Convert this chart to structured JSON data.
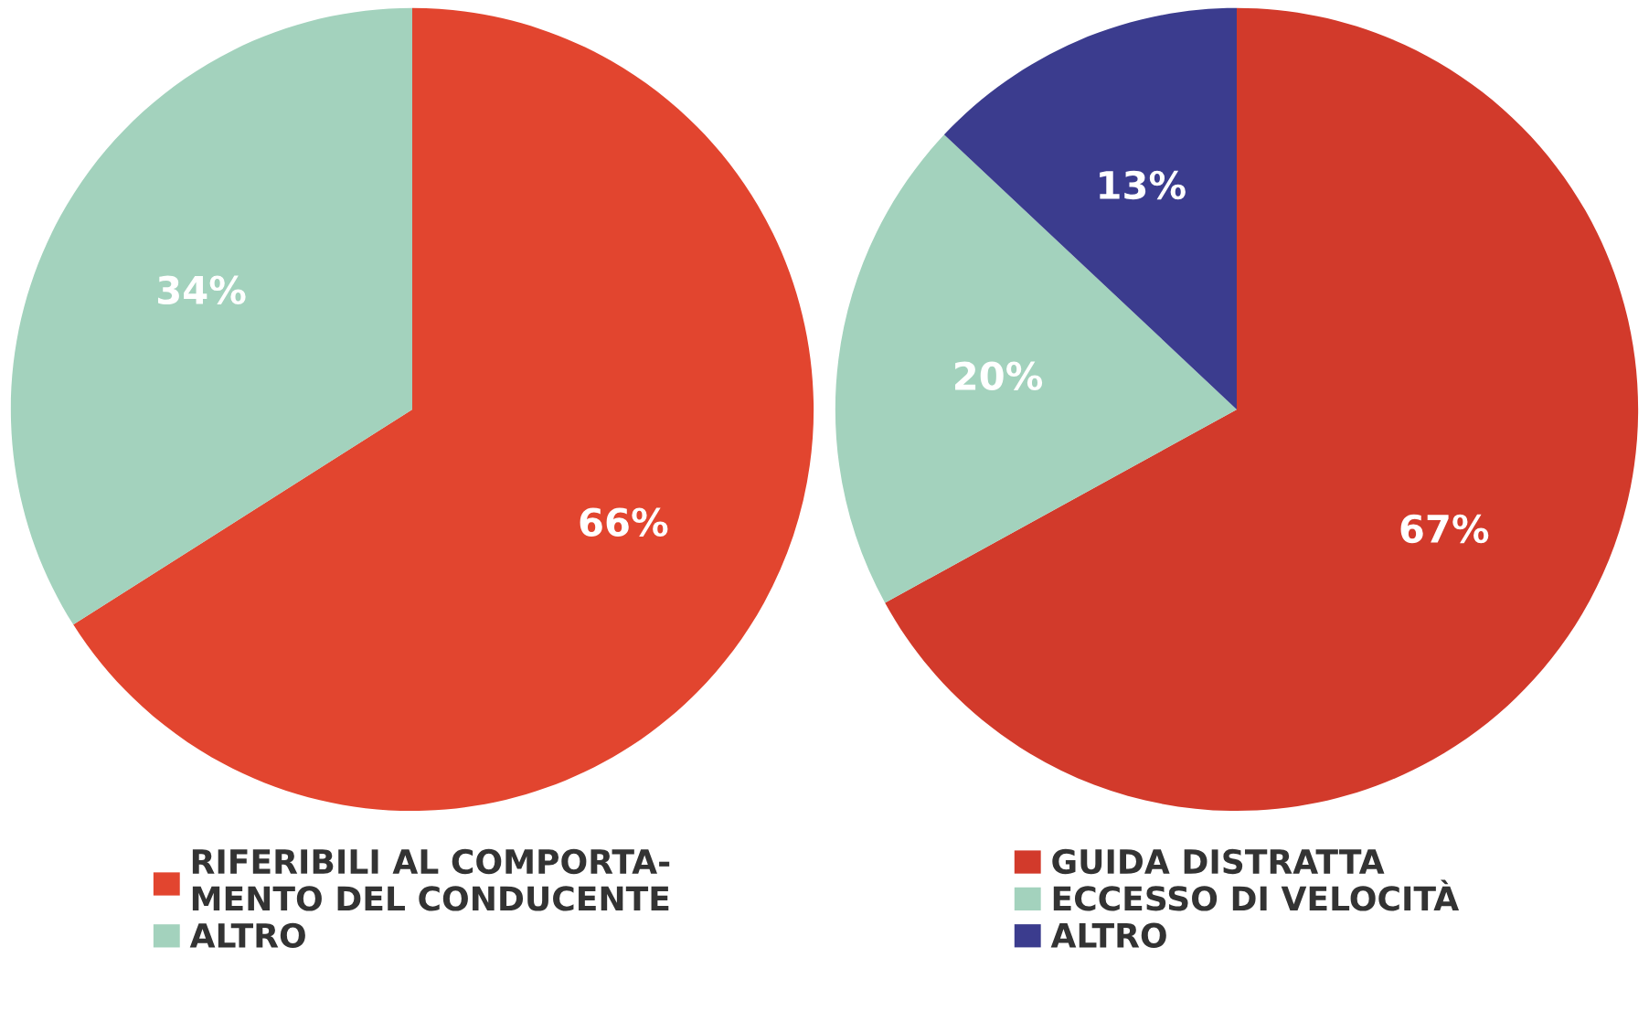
{
  "chart_data": [
    {
      "type": "pie",
      "categories": [
        "RIFERIBILI AL COMPORTA-\nMENTO DEL CONDUCENTE",
        "ALTRO"
      ],
      "values": [
        66,
        34
      ],
      "colors": [
        "#e2452f",
        "#a3d2bd"
      ],
      "value_labels": [
        "66%",
        "34%"
      ],
      "legend": "bottom"
    },
    {
      "type": "pie",
      "categories": [
        "GUIDA DISTRATTA",
        "ECCESSO DI VELOCITÀ",
        "ALTRO"
      ],
      "values": [
        67,
        20,
        13
      ],
      "colors": [
        "#d23a2b",
        "#a3d2bd",
        "#3b3c8e"
      ],
      "value_labels": [
        "67%",
        "20%",
        "13%"
      ],
      "legend": "bottom"
    }
  ]
}
